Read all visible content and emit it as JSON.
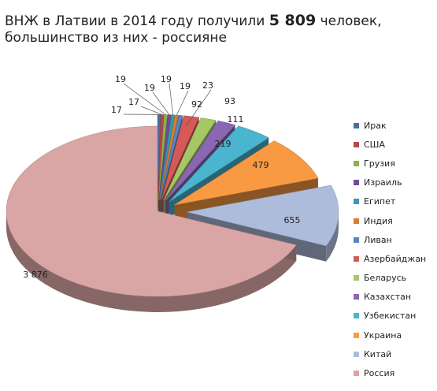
{
  "title": {
    "line1_prefix": "ВНЖ в Латвии в 2014 году получили",
    "line1_number": "5 809",
    "line1_suffix": "человек,",
    "line2": "большинство из них - россияне"
  },
  "chart_data": {
    "type": "pie",
    "title": "ВНЖ в Латвии в 2014 году получили 5 809 человек, большинство из них - россияне",
    "legend_position": "right",
    "slices": [
      {
        "name": "Ирак",
        "value": 17,
        "label": "17",
        "color": "#4a6e9f"
      },
      {
        "name": "США",
        "value": 17,
        "label": "17",
        "color": "#b94845"
      },
      {
        "name": "Грузия",
        "value": 19,
        "label": "19",
        "color": "#8fb04a"
      },
      {
        "name": "Израиль",
        "value": 19,
        "label": "19",
        "color": "#6f4e96"
      },
      {
        "name": "Египет",
        "value": 19,
        "label": "19",
        "color": "#3698b1"
      },
      {
        "name": "Индия",
        "value": 19,
        "label": "19",
        "color": "#d67f2e"
      },
      {
        "name": "Ливан",
        "value": 23,
        "label": "23",
        "color": "#5a84c2"
      },
      {
        "name": "Азербайджан",
        "value": 92,
        "label": "92",
        "color": "#d55a57"
      },
      {
        "name": "Беларусь",
        "value": 93,
        "label": "93",
        "color": "#a6c765"
      },
      {
        "name": "Казахстан",
        "value": 111,
        "label": "111",
        "color": "#8a67b3"
      },
      {
        "name": "Узбекистан",
        "value": 219,
        "label": "219",
        "color": "#4bb5cf"
      },
      {
        "name": "Украина",
        "value": 479,
        "label": "479",
        "color": "#f99a43"
      },
      {
        "name": "Китай",
        "value": 655,
        "label": "655",
        "color": "#aebcdc"
      },
      {
        "name": "Россия",
        "value": 3876,
        "label": "3 876",
        "color": "#d9a5a5"
      }
    ]
  }
}
